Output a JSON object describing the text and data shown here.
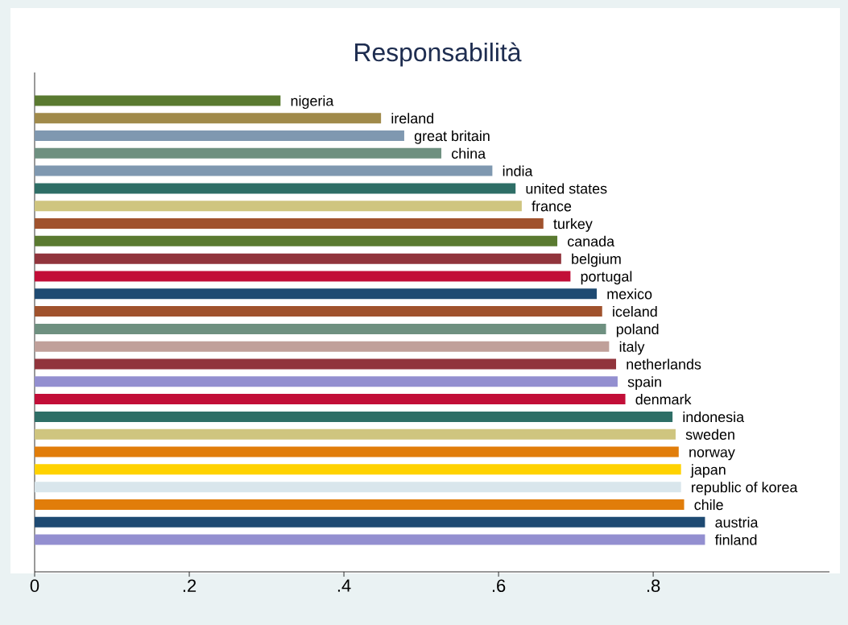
{
  "chart_data": {
    "type": "bar",
    "orientation": "horizontal",
    "title": "Responsabilità",
    "categories": [
      "nigeria",
      "ireland",
      "great britain",
      "china",
      "india",
      "united states",
      "france",
      "turkey",
      "canada",
      "belgium",
      "portugal",
      "mexico",
      "iceland",
      "poland",
      "italy",
      "netherlands",
      "spain",
      "denmark",
      "indonesia",
      "sweden",
      "norway",
      "japan",
      "republic of korea",
      "chile",
      "austria",
      "finland"
    ],
    "values": [
      0.318,
      0.448,
      0.478,
      0.526,
      0.592,
      0.622,
      0.63,
      0.658,
      0.676,
      0.681,
      0.693,
      0.727,
      0.734,
      0.739,
      0.743,
      0.752,
      0.754,
      0.764,
      0.825,
      0.829,
      0.833,
      0.836,
      0.836,
      0.84,
      0.867,
      0.867
    ],
    "colors": [
      "#5a7a30",
      "#a08a4a",
      "#7f98b0",
      "#6e9080",
      "#7f98b0",
      "#2e6e66",
      "#cfc57f",
      "#a0522d",
      "#5a7a30",
      "#91343c",
      "#c20e38",
      "#1e4a72",
      "#a0522d",
      "#6e9080",
      "#c0a09a",
      "#91343c",
      "#938fd0",
      "#c20e38",
      "#2e6e66",
      "#cfc57f",
      "#e17d0a",
      "#ffd200",
      "#d9e6ec",
      "#e17d0a",
      "#1e4a72",
      "#938fd0"
    ],
    "xlim": [
      0,
      1.028
    ],
    "xticks": [
      0,
      {
        "value": 0.2,
        "label": ".2"
      },
      {
        "value": 0.4,
        "label": ".4"
      },
      {
        "value": 0.6,
        "label": ".6"
      },
      {
        "value": 0.8,
        "label": ".8"
      }
    ],
    "grid": false
  }
}
